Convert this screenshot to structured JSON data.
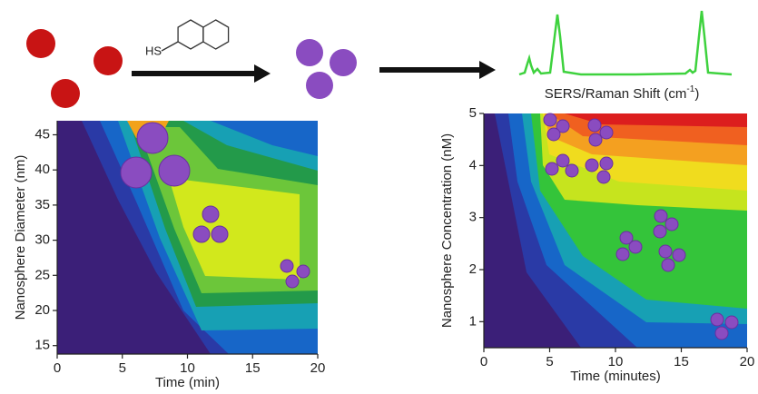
{
  "schematic": {
    "reagent_label": "HS",
    "spectrum_label": "SERS/Raman Shift (cm",
    "spectrum_label_sup": "-1",
    "spectrum_label_end": ")"
  },
  "chart_data": [
    {
      "type": "contour",
      "x_label": "Time (min)",
      "y_label": "Nanosphere Diameter (nm)",
      "xlim": [
        0,
        20
      ],
      "xticks": [
        0,
        5,
        10,
        15,
        20
      ],
      "ylim": [
        13.8,
        47
      ],
      "yticks": [
        15,
        20,
        25,
        30,
        35,
        40,
        45
      ]
    },
    {
      "type": "contour",
      "x_label": "Time (minutes)",
      "y_label": "Nanosphere Concentration (nM)",
      "xlim": [
        0,
        20
      ],
      "xticks": [
        0,
        5,
        10,
        15,
        20
      ],
      "ylim": [
        0.5,
        5
      ],
      "yticks": [
        1,
        2,
        3,
        4,
        5
      ]
    }
  ]
}
